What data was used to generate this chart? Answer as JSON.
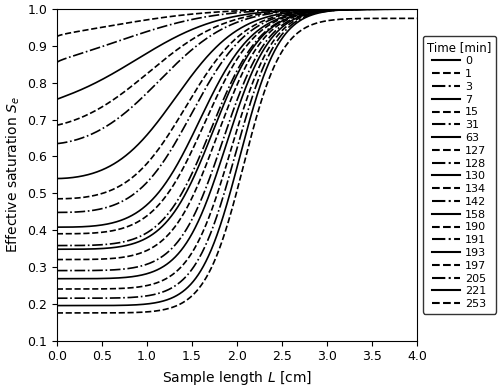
{
  "xlabel": "Sample length $L$ [cm]",
  "ylabel": "Effective saturation $S_e$",
  "xlim": [
    0.0,
    4.0
  ],
  "ylim": [
    0.1,
    1.0
  ],
  "xticks": [
    0.0,
    0.5,
    1.0,
    1.5,
    2.0,
    2.5,
    3.0,
    3.5,
    4.0
  ],
  "yticks": [
    0.1,
    0.2,
    0.3,
    0.4,
    0.5,
    0.6,
    0.7,
    0.8,
    0.9,
    1.0
  ],
  "legend_title": "Time [min]",
  "times": [
    0,
    1,
    3,
    7,
    15,
    31,
    63,
    127,
    128,
    130,
    134,
    142,
    158,
    190,
    191,
    193,
    197,
    205,
    221,
    253
  ],
  "linestyles": [
    "solid",
    "dashed",
    "dashdot",
    "solid",
    "dashed",
    "dashdot",
    "solid",
    "dashed",
    "dashdot",
    "solid",
    "dashed",
    "dashdot",
    "solid",
    "dashed",
    "dashdot",
    "solid",
    "dashed",
    "dashdot",
    "solid",
    "dashed"
  ],
  "curve_params": [
    {
      "y0": 1.0,
      "y4": 1.0,
      "alpha": 0.5,
      "beta": 4.5
    },
    {
      "y0": 0.925,
      "y4": 1.0,
      "alpha": 0.6,
      "beta": 4.5
    },
    {
      "y0": 0.855,
      "y4": 1.0,
      "alpha": 0.7,
      "beta": 4.5
    },
    {
      "y0": 0.755,
      "y4": 1.0,
      "alpha": 0.9,
      "beta": 4.5
    },
    {
      "y0": 0.685,
      "y4": 1.0,
      "alpha": 1.1,
      "beta": 4.5
    },
    {
      "y0": 0.635,
      "y4": 1.0,
      "alpha": 1.3,
      "beta": 4.5
    },
    {
      "y0": 0.54,
      "y4": 1.0,
      "alpha": 1.7,
      "beta": 4.5
    },
    {
      "y0": 0.485,
      "y4": 1.0,
      "alpha": 2.0,
      "beta": 4.5
    },
    {
      "y0": 0.448,
      "y4": 1.0,
      "alpha": 2.2,
      "beta": 4.5
    },
    {
      "y0": 0.408,
      "y4": 1.0,
      "alpha": 2.5,
      "beta": 4.5
    },
    {
      "y0": 0.39,
      "y4": 1.0,
      "alpha": 2.7,
      "beta": 4.5
    },
    {
      "y0": 0.358,
      "y4": 1.0,
      "alpha": 3.0,
      "beta": 4.5
    },
    {
      "y0": 0.348,
      "y4": 1.0,
      "alpha": 3.1,
      "beta": 4.5
    },
    {
      "y0": 0.32,
      "y4": 1.0,
      "alpha": 3.3,
      "beta": 4.5
    },
    {
      "y0": 0.29,
      "y4": 1.0,
      "alpha": 3.6,
      "beta": 4.5
    },
    {
      "y0": 0.268,
      "y4": 1.0,
      "alpha": 3.8,
      "beta": 4.5
    },
    {
      "y0": 0.24,
      "y4": 1.0,
      "alpha": 4.1,
      "beta": 4.5
    },
    {
      "y0": 0.215,
      "y4": 1.0,
      "alpha": 4.4,
      "beta": 4.5
    },
    {
      "y0": 0.195,
      "y4": 1.0,
      "alpha": 4.7,
      "beta": 4.5
    },
    {
      "y0": 0.175,
      "y4": 0.975,
      "alpha": 5.0,
      "beta": 4.5
    }
  ]
}
